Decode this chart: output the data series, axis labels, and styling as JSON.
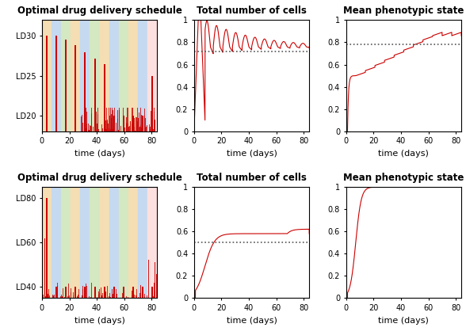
{
  "row1_schedule": {
    "title": "Optimal drug delivery schedule",
    "ylabel_ticks": [
      "LD20",
      "LD25",
      "LD30"
    ],
    "ylabel_vals": [
      20,
      25,
      30
    ],
    "xlim": [
      0,
      84
    ],
    "ylim": [
      18,
      32
    ],
    "band_starts": [
      0,
      7,
      14,
      21,
      28,
      35,
      42,
      49,
      56,
      63,
      70,
      77
    ],
    "xlabel": "time (days)"
  },
  "row1_cells": {
    "title": "Total number of cells",
    "dotted_y": 0.72,
    "xlim": [
      0,
      84
    ],
    "ylim": [
      0,
      1
    ],
    "xlabel": "time (days)"
  },
  "row1_phenotype": {
    "title": "Mean phenotypic state",
    "dotted_y": 0.78,
    "xlim": [
      0,
      84
    ],
    "ylim": [
      0,
      1
    ],
    "xlabel": "time (days)"
  },
  "row2_schedule": {
    "title": "Optimal drug delivery schedule",
    "ylabel_ticks": [
      "LD40",
      "LD60",
      "LD80"
    ],
    "ylabel_vals": [
      40,
      60,
      80
    ],
    "xlim": [
      0,
      84
    ],
    "ylim": [
      35,
      85
    ],
    "band_starts": [
      0,
      7,
      14,
      21,
      28,
      35,
      42,
      49,
      56,
      63,
      70,
      77
    ],
    "xlabel": "time (days)"
  },
  "row2_cells": {
    "title": "Total number of cells",
    "dotted_y": 0.5,
    "xlim": [
      0,
      84
    ],
    "ylim": [
      0,
      1
    ],
    "xlabel": "time (days)"
  },
  "row2_phenotype": {
    "title": "Mean phenotypic state",
    "dotted_y": 1.0,
    "xlim": [
      0,
      84
    ],
    "ylim": [
      0,
      1
    ],
    "xlabel": "time (days)"
  },
  "cycle_colors": [
    "#f5deb3",
    "#c5d9f0",
    "#d4e8c2",
    "#f5deb3",
    "#c5d9f0",
    "#d4e8c2",
    "#f5deb3",
    "#c5d9f0",
    "#d4e8c2",
    "#f5deb3",
    "#c5d9f0",
    "#fde0e0"
  ],
  "red_color": "#cc0000",
  "dotted_color": "#555555",
  "xticks": [
    0,
    20,
    40,
    60,
    80
  ],
  "title_fontsize": 8.5,
  "label_fontsize": 8,
  "tick_fontsize": 7
}
